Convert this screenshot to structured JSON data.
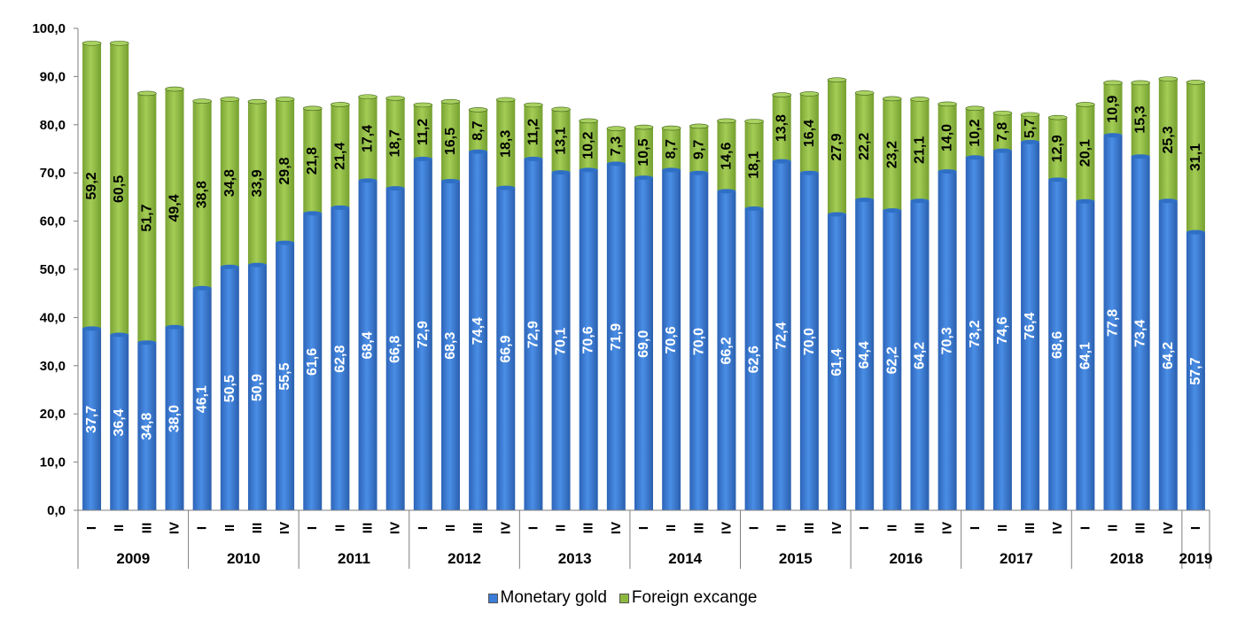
{
  "chart_data": {
    "type": "bar",
    "stacked": true,
    "title": "",
    "xlabel": "",
    "ylabel": "",
    "ylim": [
      0,
      100
    ],
    "yticks": [
      "0,0",
      "10,0",
      "20,0",
      "30,0",
      "40,0",
      "50,0",
      "60,0",
      "70,0",
      "80,0",
      "90,0",
      "100,0"
    ],
    "years": [
      "2009",
      "2010",
      "2011",
      "2012",
      "2013",
      "2014",
      "2015",
      "2016",
      "2017",
      "2018",
      "2019"
    ],
    "quarters": [
      "I",
      "II",
      "III",
      "IV"
    ],
    "categories": [
      "2009 I",
      "2009 II",
      "2009 III",
      "2009 IV",
      "2010 I",
      "2010 II",
      "2010 III",
      "2010 IV",
      "2011 I",
      "2011 II",
      "2011 III",
      "2011 IV",
      "2012 I",
      "2012 II",
      "2012 III",
      "2012 IV",
      "2013 I",
      "2013 II",
      "2013 III",
      "2013 IV",
      "2014 I",
      "2014 II",
      "2014 III",
      "2014 IV",
      "2015 I",
      "2015 II",
      "2015 III",
      "2015 IV",
      "2016 I",
      "2016 II",
      "2016 III",
      "2016 IV",
      "2017 I",
      "2017 II",
      "2017 III",
      "2017 IV",
      "2018 I",
      "2018 II",
      "2018 III",
      "2018 IV",
      "2019 I"
    ],
    "series": [
      {
        "name": "Monetary gold",
        "color": "#3b7dd8",
        "values": [
          37.7,
          36.4,
          34.8,
          38.0,
          46.1,
          50.5,
          50.9,
          55.5,
          61.6,
          62.8,
          68.4,
          66.8,
          72.9,
          68.3,
          74.4,
          66.9,
          72.9,
          70.1,
          70.6,
          71.9,
          69.0,
          70.6,
          70.0,
          66.2,
          62.6,
          72.4,
          70.0,
          61.4,
          64.4,
          62.2,
          64.2,
          70.3,
          73.2,
          74.6,
          76.4,
          68.6,
          64.1,
          77.8,
          73.4,
          64.2,
          57.7
        ],
        "labels": [
          "37,7",
          "36,4",
          "34,8",
          "38,0",
          "46,1",
          "50,5",
          "50,9",
          "55,5",
          "61,6",
          "62,8",
          "68,4",
          "66,8",
          "72,9",
          "68,3",
          "74,4",
          "66,9",
          "72,9",
          "70,1",
          "70,6",
          "71,9",
          "69,0",
          "70,6",
          "70,0",
          "66,2",
          "62,6",
          "72,4",
          "70,0",
          "61,4",
          "64,4",
          "62,2",
          "64,2",
          "70,3",
          "73,2",
          "74,6",
          "76,4",
          "68,6",
          "64,1",
          "77,8",
          "73,4",
          "64,2",
          "57,7"
        ]
      },
      {
        "name": "Foreign excange",
        "color": "#8db83f",
        "values": [
          59.2,
          60.5,
          51.7,
          49.4,
          38.8,
          34.8,
          33.9,
          29.8,
          21.8,
          21.4,
          17.4,
          18.7,
          11.2,
          16.5,
          8.7,
          18.3,
          11.2,
          13.1,
          10.2,
          7.3,
          10.5,
          8.7,
          9.7,
          14.6,
          18.1,
          13.8,
          16.4,
          27.9,
          22.2,
          23.2,
          21.1,
          14.0,
          10.2,
          7.8,
          5.7,
          12.9,
          20.1,
          10.9,
          15.3,
          25.3,
          31.1
        ],
        "labels": [
          "59,2",
          "60,5",
          "51,7",
          "49,4",
          "38,8",
          "34,8",
          "33,9",
          "29,8",
          "21,8",
          "21,4",
          "17,4",
          "18,7",
          "11,2",
          "16,5",
          "8,7",
          "18,3",
          "11,2",
          "13,1",
          "10,2",
          "7,3",
          "10,5",
          "8,7",
          "9,7",
          "14,6",
          "18,1",
          "13,8",
          "16,4",
          "27,9",
          "22,2",
          "23,2",
          "21,1",
          "14,0",
          "10,2",
          "7,8",
          "5,7",
          "12,9",
          "20,1",
          "10,9",
          "15,3",
          "25,3",
          "31,1"
        ]
      }
    ],
    "legend": {
      "position": "bottom"
    },
    "grid": false
  }
}
